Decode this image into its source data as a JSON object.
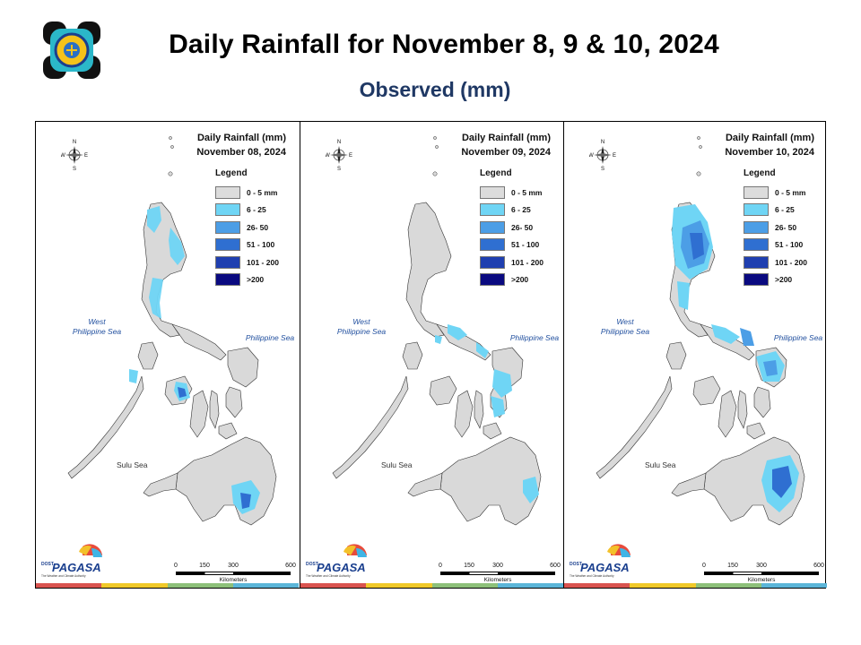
{
  "title": "Daily Rainfall for November 8, 9 & 10, 2024",
  "subtitle": "Observed (mm)",
  "legend": {
    "heading": "Legend",
    "classes": [
      {
        "label": "0 - 5 mm",
        "color": "#dcdcdc"
      },
      {
        "label": "6 - 25",
        "color": "#6fd5f5"
      },
      {
        "label": "26- 50",
        "color": "#4c9ee6"
      },
      {
        "label": "51 - 100",
        "color": "#2f6fd1"
      },
      {
        "label": "101 - 200",
        "color": "#1f3fb0"
      },
      {
        "label": ">200",
        "color": "#0a0a80"
      }
    ]
  },
  "panels": [
    {
      "heading": "Daily Rainfall (mm)",
      "date": "November 08, 2024"
    },
    {
      "heading": "Daily Rainfall (mm)",
      "date": "November 09, 2024"
    },
    {
      "heading": "Daily Rainfall (mm)",
      "date": "November 10, 2024"
    }
  ],
  "map_labels": {
    "west_sea": "West\nPhilippine Sea",
    "philippine_sea": "Philippine Sea",
    "sulu_sea": "Sulu Sea",
    "compass": {
      "n": "N",
      "s": "S",
      "e": "E",
      "w": "W"
    }
  },
  "scale": {
    "ticks": [
      "0",
      "150",
      "300",
      "600"
    ],
    "unit": "Kilometers"
  },
  "logo_text": "PAGASA",
  "logo_prefix": "DOST",
  "logo_tagline": "The Weather and Climate Authority",
  "stripe_colors": [
    "#d9534f",
    "#f0c929",
    "#8dc07a",
    "#5bb5d8"
  ],
  "land_color": "#d9d9d9"
}
